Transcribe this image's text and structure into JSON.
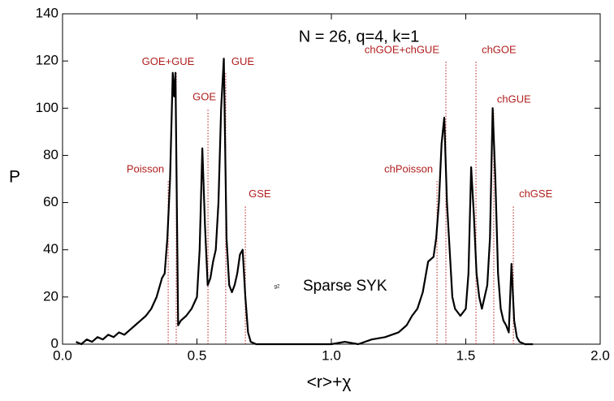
{
  "chart_data": {
    "type": "line",
    "title": "N = 26, q=4, k=1",
    "xlabel": "<r>+χ",
    "ylabel": "P",
    "xlim": [
      0,
      2
    ],
    "ylim": [
      0,
      140
    ],
    "xticks": [
      {
        "value": 0,
        "label": "0.0"
      },
      0.5,
      {
        "value": 1,
        "label": "1.0"
      },
      1.5,
      {
        "value": 2,
        "label": "2.0"
      }
    ],
    "yticks": [
      0,
      20,
      40,
      60,
      80,
      100,
      120,
      140
    ],
    "legend_icon": "g2",
    "series": [
      {
        "name": "Sparse SYK",
        "color": "#000000",
        "x": [
          0.05,
          0.07,
          0.09,
          0.11,
          0.13,
          0.15,
          0.17,
          0.19,
          0.21,
          0.23,
          0.25,
          0.27,
          0.29,
          0.31,
          0.33,
          0.35,
          0.37,
          0.38,
          0.39,
          0.4,
          0.41,
          0.415,
          0.42,
          0.43,
          0.44,
          0.46,
          0.48,
          0.5,
          0.51,
          0.52,
          0.53,
          0.54,
          0.55,
          0.56,
          0.57,
          0.58,
          0.59,
          0.6,
          0.61,
          0.62,
          0.63,
          0.64,
          0.65,
          0.66,
          0.67,
          0.68,
          0.69,
          0.7,
          0.72,
          0.75,
          0.8,
          0.9,
          1.0,
          1.05,
          1.1,
          1.15,
          1.2,
          1.25,
          1.28,
          1.3,
          1.32,
          1.34,
          1.36,
          1.38,
          1.39,
          1.4,
          1.41,
          1.42,
          1.43,
          1.44,
          1.45,
          1.46,
          1.48,
          1.5,
          1.51,
          1.52,
          1.53,
          1.54,
          1.55,
          1.56,
          1.57,
          1.58,
          1.59,
          1.6,
          1.61,
          1.62,
          1.63,
          1.64,
          1.65,
          1.66,
          1.67,
          1.68,
          1.69,
          1.7,
          1.72,
          1.75
        ],
        "values": [
          1,
          0,
          2,
          1,
          3,
          2,
          4,
          3,
          5,
          4,
          6,
          8,
          10,
          12,
          15,
          20,
          28,
          30,
          45,
          70,
          115,
          105,
          115,
          8,
          10,
          12,
          15,
          20,
          40,
          83,
          50,
          25,
          28,
          35,
          40,
          60,
          100,
          121,
          45,
          25,
          22,
          25,
          30,
          38,
          40,
          20,
          5,
          1,
          0,
          0,
          0,
          0,
          0,
          1,
          0,
          2,
          3,
          5,
          8,
          12,
          15,
          22,
          35,
          37,
          45,
          60,
          85,
          96,
          60,
          40,
          20,
          15,
          12,
          15,
          30,
          75,
          55,
          30,
          20,
          15,
          20,
          25,
          45,
          100,
          70,
          30,
          15,
          10,
          8,
          5,
          34,
          10,
          3,
          1,
          0,
          0
        ]
      }
    ],
    "reference_lines": {
      "color": "#b01e1e",
      "labels": [
        "Poisson",
        "GOE+GUE",
        "GOE",
        "GUE",
        "GSE",
        "chPoisson",
        "chGOE+chGUE",
        "chGOE",
        "chGUE",
        "chGSE"
      ],
      "x": [
        0.393,
        0.423,
        0.541,
        0.607,
        0.68,
        1.393,
        1.426,
        1.538,
        1.604,
        1.677
      ],
      "top": [
        69.5,
        115,
        100,
        115,
        59,
        69.5,
        120,
        120,
        99,
        59
      ]
    }
  }
}
